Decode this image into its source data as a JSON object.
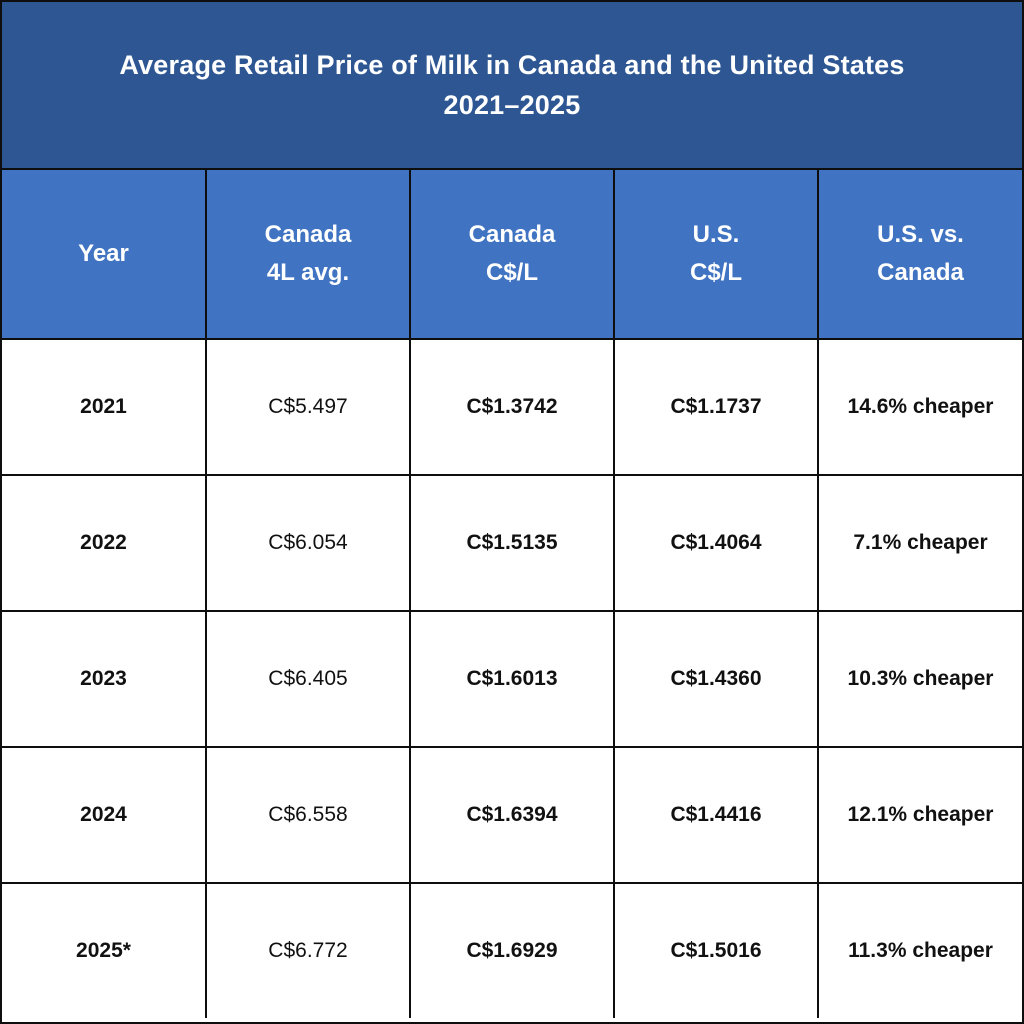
{
  "title": {
    "line1": "Average Retail Price of Milk in Canada and the United States",
    "line2": "2021–2025"
  },
  "colors": {
    "title_background": "#2d5693",
    "header_background": "#4074c2",
    "grid_lines": "#0e0e0e",
    "text_light": "#ffffff",
    "text_dark": "#111111"
  },
  "columns": [
    [
      "Year"
    ],
    [
      "Canada",
      "4L avg."
    ],
    [
      "Canada",
      "C$/L"
    ],
    [
      "U.S.",
      "C$/L"
    ],
    [
      "U.S. vs.",
      "Canada"
    ]
  ],
  "rows": [
    [
      "2021",
      "C$5.497",
      "C$1.3742",
      "C$1.1737",
      "14.6% cheaper"
    ],
    [
      "2022",
      "C$6.054",
      "C$1.5135",
      "C$1.4064",
      "7.1% cheaper"
    ],
    [
      "2023",
      "C$6.405",
      "C$1.6013",
      "C$1.4360",
      "10.3% cheaper"
    ],
    [
      "2024",
      "C$6.558",
      "C$1.6394",
      "C$1.4416",
      "12.1% cheaper"
    ],
    [
      "2025*",
      "C$6.772",
      "C$1.6929",
      "C$1.5016",
      "11.3% cheaper"
    ]
  ],
  "chart_data": {
    "type": "table",
    "title": "Average Retail Price of Milk in Canada and the United States 2021–2025",
    "columns": [
      "Year",
      "Canada 4L avg.",
      "Canada C$/L",
      "U.S. C$/L",
      "U.S. vs. Canada"
    ],
    "rows": [
      [
        "2021",
        "C$5.497",
        "C$1.3742",
        "C$1.1737",
        "14.6% cheaper"
      ],
      [
        "2022",
        "C$6.054",
        "C$1.5135",
        "C$1.4064",
        "7.1% cheaper"
      ],
      [
        "2023",
        "C$6.405",
        "C$1.6013",
        "C$1.4360",
        "10.3% cheaper"
      ],
      [
        "2024",
        "C$6.558",
        "C$1.6394",
        "C$1.4416",
        "12.1% cheaper"
      ],
      [
        "2025*",
        "C$6.772",
        "C$1.6929",
        "C$1.5016",
        "11.3% cheaper"
      ]
    ]
  }
}
